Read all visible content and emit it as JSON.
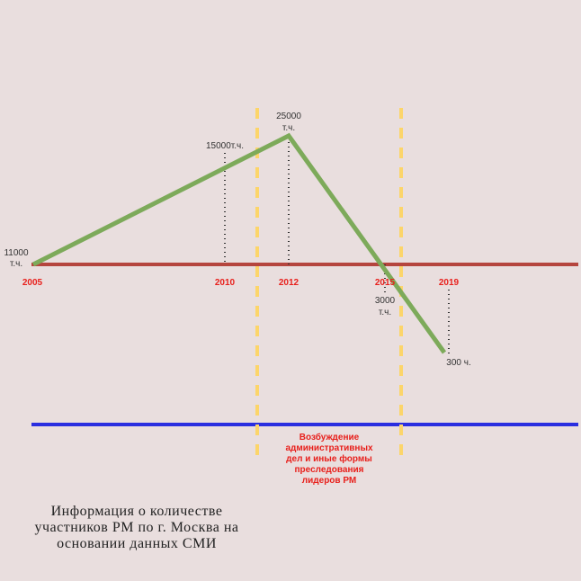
{
  "points": [
    {
      "year": "2005",
      "label": [
        "11000",
        "т.ч."
      ]
    },
    {
      "year": "2010",
      "label": [
        "15000т.ч."
      ]
    },
    {
      "year": "2012",
      "label": [
        "25000",
        "т.ч."
      ]
    },
    {
      "year": "2015",
      "label": [
        "3000",
        "т.ч."
      ]
    },
    {
      "year": "2019",
      "label": [
        "300 ч."
      ]
    }
  ],
  "annotation": [
    "Возбуждение",
    "административных",
    "дел и иные формы",
    "преследования",
    "лидеров РМ"
  ],
  "caption": [
    "Информация о количестве",
    "участников РМ по г. Москва на",
    "основании данных СМИ"
  ]
}
